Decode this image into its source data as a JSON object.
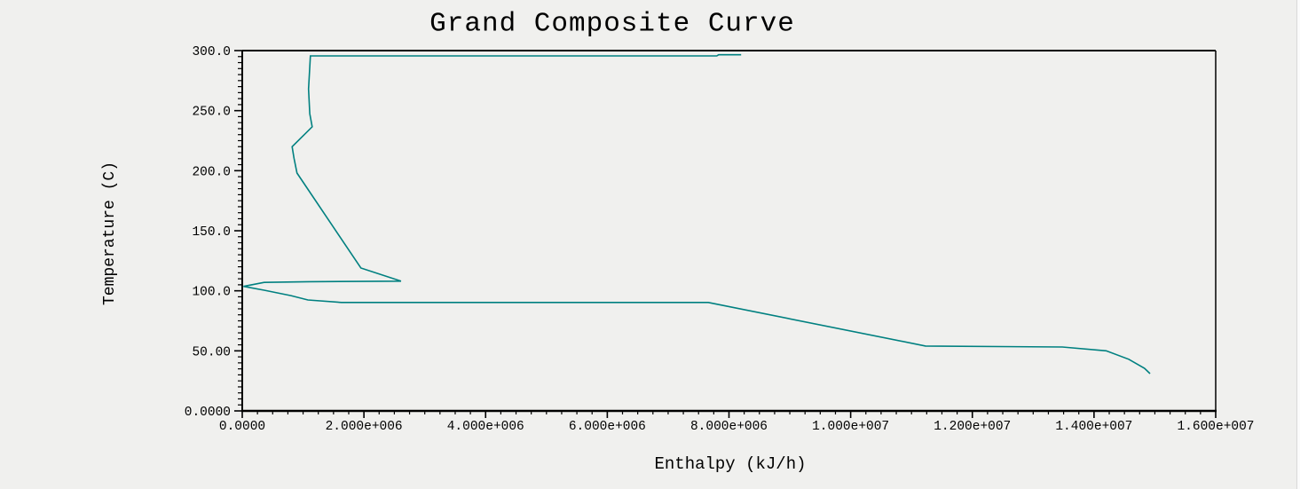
{
  "window": {
    "background_color": "#f0f0ee",
    "axis_color": "#000000"
  },
  "chart_data": {
    "type": "line",
    "title": "Grand Composite Curve",
    "xlabel": "Enthalpy (kJ/h)",
    "ylabel": "Temperature (C)",
    "xlim": [
      0,
      16000000
    ],
    "ylim": [
      0,
      300
    ],
    "grid": false,
    "legend": "none",
    "line_color": "#008080",
    "x_ticks": [
      {
        "value": 0,
        "label": "0.0000"
      },
      {
        "value": 2000000,
        "label": "2.000e+006"
      },
      {
        "value": 4000000,
        "label": "4.000e+006"
      },
      {
        "value": 6000000,
        "label": "6.000e+006"
      },
      {
        "value": 8000000,
        "label": "8.000e+006"
      },
      {
        "value": 10000000,
        "label": "1.000e+007"
      },
      {
        "value": 12000000,
        "label": "1.200e+007"
      },
      {
        "value": 14000000,
        "label": "1.400e+007"
      },
      {
        "value": 16000000,
        "label": "1.600e+007"
      }
    ],
    "y_ticks": [
      {
        "value": 0,
        "label": "0.0000"
      },
      {
        "value": 50,
        "label": "50.00"
      },
      {
        "value": 100,
        "label": "100.0"
      },
      {
        "value": 150,
        "label": "150.0"
      },
      {
        "value": 200,
        "label": "200.0"
      },
      {
        "value": 250,
        "label": "250.0"
      },
      {
        "value": 300,
        "label": "300.0"
      }
    ],
    "x_minor_step": 250000,
    "y_minor_step": 5,
    "series": [
      {
        "name": "Grand Composite Curve",
        "points": [
          [
            8200000,
            296.5
          ],
          [
            7830000,
            296.5
          ],
          [
            7800000,
            295.6
          ],
          [
            1120000,
            295.6
          ],
          [
            1090000,
            268.0
          ],
          [
            1110000,
            247.5
          ],
          [
            1150000,
            236.5
          ],
          [
            820000,
            220.0
          ],
          [
            850000,
            210.5
          ],
          [
            900000,
            198.0
          ],
          [
            1950000,
            119.0
          ],
          [
            2610000,
            108.0
          ],
          [
            1100000,
            107.6
          ],
          [
            360000,
            107.0
          ],
          [
            20000,
            103.7
          ],
          [
            360000,
            100.5
          ],
          [
            800000,
            96.0
          ],
          [
            1080000,
            92.4
          ],
          [
            1630000,
            90.3
          ],
          [
            7660000,
            90.3
          ],
          [
            11230000,
            54.0
          ],
          [
            13480000,
            53.2
          ],
          [
            14200000,
            50.0
          ],
          [
            14570000,
            43.0
          ],
          [
            14830000,
            35.5
          ],
          [
            14920000,
            31.0
          ]
        ]
      }
    ]
  }
}
